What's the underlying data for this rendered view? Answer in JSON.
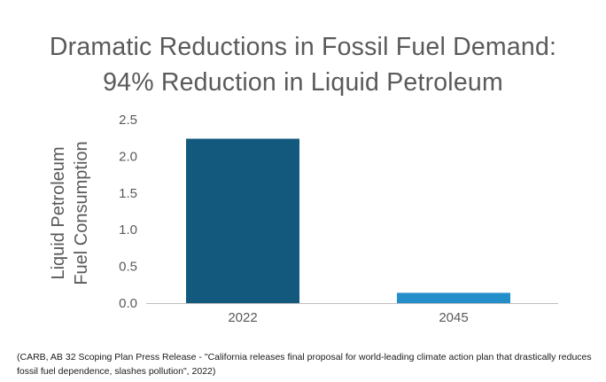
{
  "title_line1": "Dramatic Reductions in Fossil Fuel Demand:",
  "title_line2": "94% Reduction in Liquid Petroleum",
  "source": "(CARB,  AB 32 Scoping Plan Press Release - \"California releases final proposal for world-leading climate action plan that drastically reduces fossil fuel dependence, slashes pollution\", 2022)",
  "colors": {
    "bar_2022": "#13597d",
    "bar_2045": "#238ec9",
    "axis": "#bfbfbf",
    "text": "#595959"
  },
  "chart_data": {
    "type": "bar",
    "categories": [
      "2022",
      "2045"
    ],
    "values": [
      2.24,
      0.14
    ],
    "title": "Dramatic Reductions in Fossil Fuel Demand: 94% Reduction in Liquid Petroleum",
    "ylabel_lines": [
      "Liquid Petroleum",
      "Fuel Consumption"
    ],
    "xlabel": "",
    "ylim": [
      0,
      2.5
    ],
    "yticks": [
      "0.0",
      "0.5",
      "1.0",
      "1.5",
      "2.0",
      "2.5"
    ],
    "grid": false,
    "legend": "none"
  }
}
